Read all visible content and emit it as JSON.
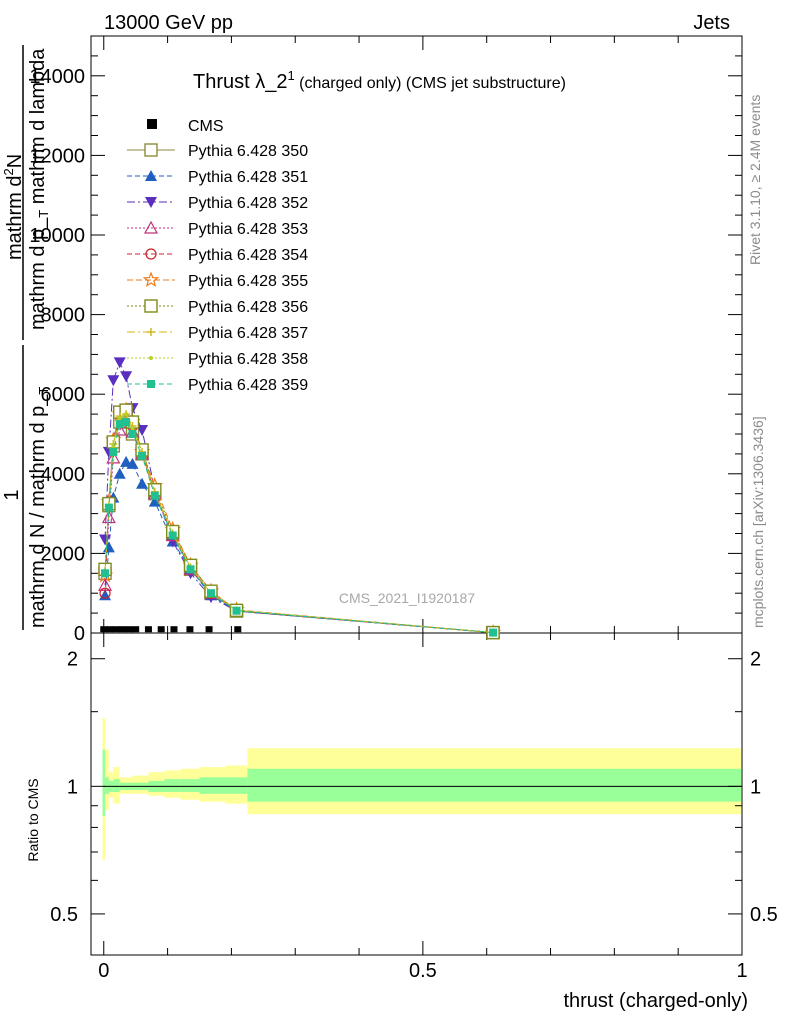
{
  "header": {
    "left": "13000 GeV pp",
    "right": "Jets"
  },
  "title": {
    "main": "Thrust λ_2",
    "sup": "1",
    "sub": " (charged only) (CMS jet substructure)"
  },
  "side_labels": {
    "rivet": "Rivet 3.1.10, ≥ 2.4M events",
    "mcplots": "mcplots.cern.ch [arXiv:1306.3436]"
  },
  "watermark": "CMS_2021_I1920187",
  "ylabel_top": {
    "line1": "mathrm d",
    "line1_sup": "2",
    "line1_end": "N",
    "line2": "mathrm d p_",
    "line2_sub": "T",
    "line2_end": " mathrm d lambda",
    "numerator": "1",
    "denominator": "mathrm d N / mathrm d p_",
    "denominator_sub": "T"
  },
  "ylabel_ratio": "Ratio to CMS",
  "xlabel": "thrust (charged-only)",
  "chart_data": [
    {
      "type": "line",
      "panel": "main",
      "ylim": [
        0,
        15000
      ],
      "xlim": [
        -0.02,
        1.0
      ],
      "yticks": [
        0,
        2000,
        4000,
        6000,
        8000,
        10000,
        12000,
        14000
      ],
      "ytick_labels": [
        "0",
        "2000",
        "4000",
        "6000",
        "8000",
        "10000",
        "12000",
        "14000"
      ],
      "xticks": [
        0,
        0.5,
        1
      ],
      "xtick_labels": [
        "0",
        "0.5",
        "1"
      ],
      "legend_position": "top-left",
      "data": {
        "name": "CMS",
        "x": [
          0.0,
          0.01,
          0.02,
          0.03,
          0.04,
          0.05,
          0.07,
          0.09,
          0.11,
          0.135,
          0.165,
          0.21
        ],
        "y": [
          20,
          20,
          20,
          20,
          20,
          20,
          20,
          20,
          20,
          20,
          20,
          20
        ]
      },
      "x": [
        0.002,
        0.008,
        0.015,
        0.025,
        0.035,
        0.045,
        0.06,
        0.08,
        0.108,
        0.136,
        0.168,
        0.208,
        0.61
      ],
      "series": [
        {
          "name": "Pythia 6.428 350",
          "color": "#8c8c3c",
          "dash": "",
          "marker": "square-open",
          "values": [
            1500,
            3200,
            4700,
            5300,
            5500,
            5000,
            4500,
            3500,
            2500,
            1600,
            1000,
            550,
            10
          ]
        },
        {
          "name": "Pythia 6.428 351",
          "color": "#1f5fbf",
          "dash": "5,3",
          "marker": "triangle-up",
          "values": [
            950,
            2150,
            3400,
            4000,
            4300,
            4250,
            3750,
            3300,
            2300,
            1600,
            950,
            550,
            10
          ]
        },
        {
          "name": "Pythia 6.428 352",
          "color": "#5a2fbf",
          "dash": "8,3,2,3",
          "marker": "triangle-down",
          "values": [
            2350,
            4550,
            6350,
            6800,
            6450,
            5650,
            5100,
            3600,
            2300,
            1500,
            900,
            550,
            10
          ]
        },
        {
          "name": "Pythia 6.428 353",
          "color": "#c0307a",
          "dash": "2,2",
          "marker": "triangle-open",
          "values": [
            1200,
            2900,
            4400,
            5100,
            5300,
            5050,
            4500,
            3500,
            2450,
            1600,
            1000,
            560,
            10
          ]
        },
        {
          "name": "Pythia 6.428 354",
          "color": "#d0202a",
          "dash": "5,3",
          "marker": "circle-open",
          "values": [
            1000,
            3300,
            4800,
            5500,
            5500,
            5200,
            4600,
            3500,
            2500,
            1650,
            1000,
            560,
            10
          ]
        },
        {
          "name": "Pythia 6.428 355",
          "color": "#ef7a1a",
          "dash": "6,3",
          "marker": "star-open",
          "values": [
            1450,
            3300,
            4850,
            5500,
            5600,
            5300,
            4550,
            3700,
            2600,
            1700,
            1050,
            580,
            10
          ]
        },
        {
          "name": "Pythia 6.428 356",
          "color": "#7f8c1a",
          "dash": "2,2",
          "marker": "square-open",
          "values": [
            1600,
            3250,
            4800,
            5550,
            5600,
            5300,
            4600,
            3600,
            2550,
            1700,
            1050,
            570,
            10
          ]
        },
        {
          "name": "Pythia 6.428 357",
          "color": "#d4b81a",
          "dash": "8,3,2,3",
          "marker": "cross",
          "values": [
            1550,
            3200,
            4750,
            5450,
            5500,
            5200,
            4550,
            3550,
            2500,
            1650,
            1000,
            570,
            10
          ]
        },
        {
          "name": "Pythia 6.428 358",
          "color": "#b8d020",
          "dash": "2,2",
          "marker": "dot",
          "values": [
            1550,
            3200,
            4700,
            5400,
            5500,
            5150,
            4500,
            3500,
            2500,
            1650,
            1000,
            570,
            10
          ]
        },
        {
          "name": "Pythia 6.428 359",
          "color": "#20c090",
          "dash": "5,3",
          "marker": "square-filled",
          "values": [
            1500,
            3150,
            4550,
            5250,
            5300,
            5000,
            4450,
            3450,
            2450,
            1600,
            1000,
            560,
            10
          ]
        }
      ]
    },
    {
      "type": "area",
      "panel": "ratio",
      "ylabel": "Ratio to CMS",
      "ylog": true,
      "ylim": [
        0.4,
        2.3
      ],
      "yticks": [
        0.5,
        1,
        2
      ],
      "ytick_labels": [
        "0.5",
        "1",
        "2"
      ],
      "xlim": [
        -0.02,
        1.0
      ],
      "xticks": [
        0,
        0.5,
        1
      ],
      "xtick_labels": [
        "0",
        "0.5",
        "1"
      ],
      "bands": [
        {
          "name": "total uncertainty",
          "color": "#ffff99",
          "bins": [
            [
              -0.002,
              0.002,
              0.67,
              1.45
            ],
            [
              0.002,
              0.008,
              0.88,
              1.22
            ],
            [
              0.008,
              0.015,
              0.94,
              1.08
            ],
            [
              0.015,
              0.025,
              0.91,
              1.11
            ],
            [
              0.025,
              0.045,
              0.96,
              1.05
            ],
            [
              0.045,
              0.07,
              0.96,
              1.06
            ],
            [
              0.07,
              0.095,
              0.95,
              1.08
            ],
            [
              0.095,
              0.12,
              0.94,
              1.09
            ],
            [
              0.12,
              0.15,
              0.93,
              1.1
            ],
            [
              0.15,
              0.19,
              0.92,
              1.11
            ],
            [
              0.19,
              0.225,
              0.91,
              1.12
            ],
            [
              0.225,
              1.0,
              0.86,
              1.23
            ]
          ]
        },
        {
          "name": "stat uncertainty",
          "color": "#99ff99",
          "bins": [
            [
              -0.002,
              0.002,
              0.85,
              1.22
            ],
            [
              0.002,
              0.008,
              0.96,
              1.05
            ],
            [
              0.008,
              0.015,
              0.97,
              1.03
            ],
            [
              0.015,
              0.025,
              0.97,
              1.04
            ],
            [
              0.025,
              0.045,
              0.98,
              1.02
            ],
            [
              0.045,
              0.07,
              0.98,
              1.02
            ],
            [
              0.07,
              0.095,
              0.97,
              1.03
            ],
            [
              0.095,
              0.12,
              0.97,
              1.04
            ],
            [
              0.12,
              0.15,
              0.97,
              1.04
            ],
            [
              0.15,
              0.19,
              0.96,
              1.05
            ],
            [
              0.19,
              0.225,
              0.96,
              1.05
            ],
            [
              0.225,
              1.0,
              0.92,
              1.1
            ]
          ]
        }
      ],
      "reference_line": 1
    }
  ]
}
